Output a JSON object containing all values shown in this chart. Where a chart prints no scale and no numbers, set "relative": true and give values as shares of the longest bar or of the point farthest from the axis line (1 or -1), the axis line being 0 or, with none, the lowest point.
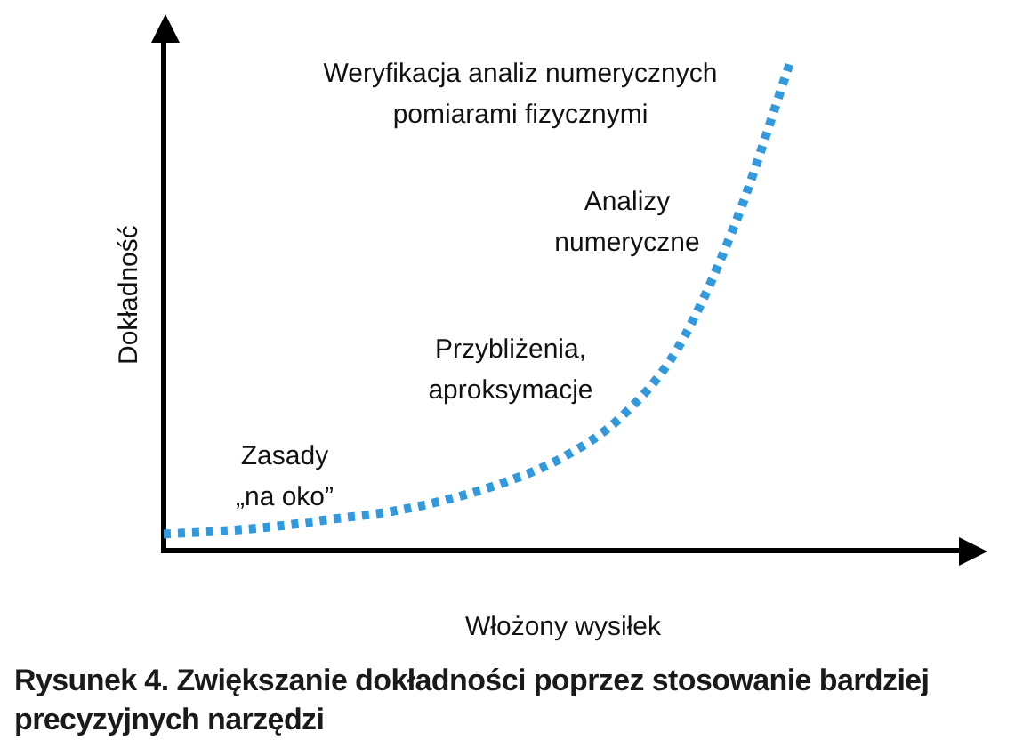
{
  "chart_data": {
    "type": "line",
    "relative": true,
    "title": "Rysunek 4. Zwiększanie dokładności poprzez stosowanie bardziej precyzyjnych narzędzi",
    "xlabel": "Włożony wysiłek",
    "ylabel": "Dokładność",
    "categories": [
      null,
      null,
      null,
      null,
      null,
      null,
      null,
      null,
      null,
      null,
      null,
      null,
      null,
      null,
      null
    ],
    "series": [
      {
        "color": "#3399dd",
        "values": [
          0.034,
          0.04,
          0.05,
          0.065,
          0.08,
          0.105,
          0.14,
          0.19,
          0.27,
          0.41,
          0.66,
          1.0,
          null,
          null,
          null
        ]
      }
    ],
    "line_style": "dotted",
    "marker": "none",
    "grid": false,
    "legend": false,
    "annotations": [
      "Weryfikacja analiz numerycznych pomiarami fizycznymi",
      "Analizy numeryczne",
      "Przybliżenia, aproksymacje",
      "Zasady „na oko”"
    ]
  }
}
